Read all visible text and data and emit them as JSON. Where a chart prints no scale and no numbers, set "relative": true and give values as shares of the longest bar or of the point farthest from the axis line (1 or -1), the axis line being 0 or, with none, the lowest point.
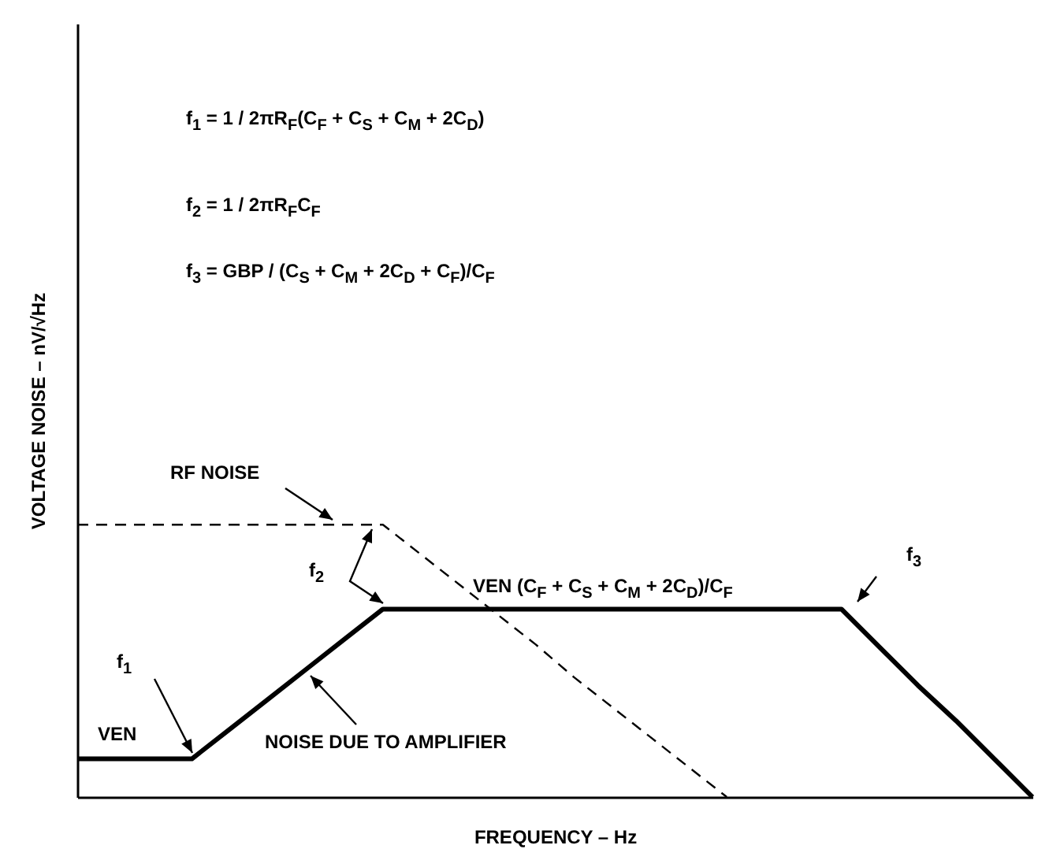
{
  "chart_data": {
    "type": "line",
    "relative": true,
    "xlabel": "FREQUENCY – Hz",
    "ylabel": "VOLTAGE NOISE – nV/√Hz",
    "categories": [
      null,
      null,
      null,
      null,
      null,
      null,
      null,
      null,
      null,
      null,
      null,
      null,
      null,
      null,
      null,
      null,
      null,
      null,
      null,
      null,
      null,
      null,
      null,
      null,
      null,
      null
    ],
    "series": [
      {
        "color": "#000000",
        "line_style": "solid",
        "values": [
          0.14,
          0.14,
          0.14,
          0.14,
          0.25,
          0.36,
          0.47,
          0.58,
          0.69,
          0.69,
          0.69,
          0.69,
          0.69,
          0.69,
          0.69,
          0.69,
          0.69,
          0.69,
          0.69,
          0.69,
          0.69,
          0.55,
          0.41,
          0.28,
          0.14,
          0
        ]
      },
      {
        "color": "#000000",
        "line_style": "dashed",
        "values": [
          1,
          1,
          1,
          1,
          1,
          1,
          1,
          1,
          1,
          0.89,
          0.78,
          0.67,
          0.56,
          0.44,
          0.33,
          0.22,
          0.11,
          0,
          null,
          null,
          null,
          null,
          null,
          null,
          null,
          null
        ]
      }
    ],
    "annotations": [
      "f$_{1}$ = 1 / 2πR$_{F}$(C$_{F}$ + C$_{S}$ + C$_{M}$ + 2C$_{D}$)",
      "f$_{2}$ = 1 / 2πR$_{F}$C$_{F}$",
      "f$_{3}$ = GBP / (C$_{S}$ + C$_{M}$ + 2C$_{D}$ + C$_{F}$)/C$_{F}$",
      "RF NOISE",
      "f$_{2}$",
      "VEN (C$_{F}$ + C$_{S}$ + C$_{M}$ + 2C$_{D}$)/C$_{F}$",
      "f$_{3}$",
      "f$_{1}$",
      "VEN",
      "NOISE DUE TO AMPLIFIER"
    ],
    "grid": false
  }
}
